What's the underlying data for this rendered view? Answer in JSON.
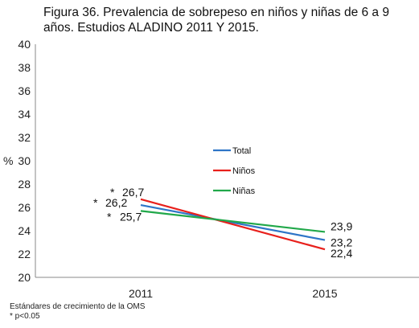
{
  "chart_data": {
    "type": "line",
    "title": "Figura 36. Prevalencia de sobrepeso en niños y niñas de 6 a 9 años. Estudios ALADINO 2011 Y 2015.",
    "ylabel": "%",
    "xlabel": "",
    "ylim": [
      20,
      40
    ],
    "yticks": [
      "20",
      "22",
      "24",
      "26",
      "28",
      "30",
      "32",
      "34",
      "36",
      "38",
      "40"
    ],
    "categories": [
      "2011",
      "2015"
    ],
    "grid": false,
    "legend_position": "center",
    "series": [
      {
        "name": "Total",
        "color": "#2e75c7",
        "values": [
          26.2,
          23.2
        ],
        "labels": [
          "26,2",
          "23,2"
        ],
        "significance": [
          "*",
          ""
        ]
      },
      {
        "name": "Niños",
        "color": "#e8201c",
        "values": [
          26.7,
          22.4
        ],
        "labels": [
          "26,7",
          "22,4"
        ],
        "significance": [
          "*",
          ""
        ]
      },
      {
        "name": "Niñas",
        "color": "#21a84a",
        "values": [
          25.7,
          23.9
        ],
        "labels": [
          "25,7",
          "23,9"
        ],
        "significance": [
          "*",
          ""
        ]
      }
    ],
    "notes": [
      "Estándares de crecimiento de la OMS",
      "* p<0.05"
    ]
  }
}
